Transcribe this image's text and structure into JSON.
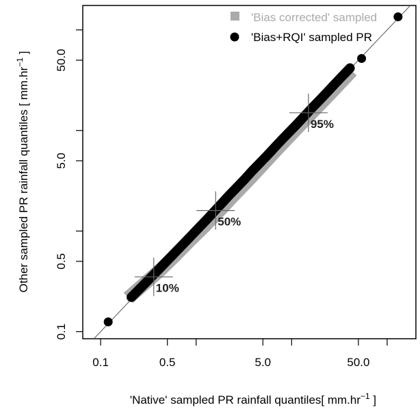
{
  "chart_data": {
    "type": "scatter",
    "xlabel": "'Native' sampled PR rainfall quantiles[ mm.hr",
    "ylabel": "Other sampled PR rainfall quantiles [ mm.hr",
    "unit_superscript": "−1",
    "unit_close": " ]",
    "x_scale": "log",
    "y_scale": "log",
    "xlim": [
      0.065,
      200
    ],
    "ylim": [
      0.085,
      175
    ],
    "x_ticks": [
      0.1,
      0.5,
      5.0,
      50.0
    ],
    "x_tick_labels": [
      "0.1",
      "0.5",
      "5.0",
      "50.0"
    ],
    "x_minor_ticks": [
      1,
      10,
      100
    ],
    "y_ticks": [
      0.1,
      0.5,
      5.0,
      50.0
    ],
    "y_tick_labels": [
      "0.1",
      "0.5",
      "5.0",
      "50.0"
    ],
    "y_minor_ticks": [
      1,
      10,
      100
    ],
    "reference_line": "y = x",
    "legend_position": "top-right",
    "series": [
      {
        "name": "'Bias corrected' sampled",
        "marker": "square",
        "color": "#aaaaaa",
        "x": [
          0.22,
          0.3,
          0.42,
          0.6,
          0.85,
          1.2,
          1.7,
          2.4,
          3.4,
          4.8,
          6.8,
          9.6,
          13.6,
          19.2,
          27.0,
          38.0
        ],
        "y": [
          0.24,
          0.31,
          0.41,
          0.57,
          0.8,
          1.1,
          1.55,
          2.2,
          3.1,
          4.4,
          6.3,
          8.9,
          12.6,
          17.7,
          24.8,
          35.0
        ]
      },
      {
        "name": "'Bias+RQI' sampled PR",
        "marker": "circle",
        "color": "#000000",
        "x": [
          0.12,
          0.21,
          0.24,
          0.3,
          0.36,
          0.43,
          0.52,
          0.62,
          0.75,
          0.9,
          1.08,
          1.3,
          1.55,
          1.85,
          2.2,
          2.65,
          3.2,
          3.8,
          4.6,
          5.5,
          6.6,
          7.9,
          9.5,
          11.4,
          13.7,
          16.4,
          19.7,
          23.6,
          28.3,
          34.0,
          40.8,
          54.0,
          130.0
        ],
        "y": [
          0.125,
          0.22,
          0.25,
          0.31,
          0.37,
          0.44,
          0.53,
          0.63,
          0.76,
          0.91,
          1.09,
          1.31,
          1.57,
          1.88,
          2.25,
          2.7,
          3.25,
          3.9,
          4.7,
          5.6,
          6.75,
          8.1,
          9.7,
          11.6,
          14.0,
          16.8,
          20.1,
          24.1,
          29.0,
          34.8,
          41.7,
          52.0,
          135.0
        ]
      }
    ],
    "annotations": [
      {
        "label": "10%",
        "x": 0.36,
        "y": 0.35
      },
      {
        "label": "50%",
        "x": 1.6,
        "y": 1.6
      },
      {
        "label": "95%",
        "x": 15.0,
        "y": 15.0
      }
    ]
  }
}
